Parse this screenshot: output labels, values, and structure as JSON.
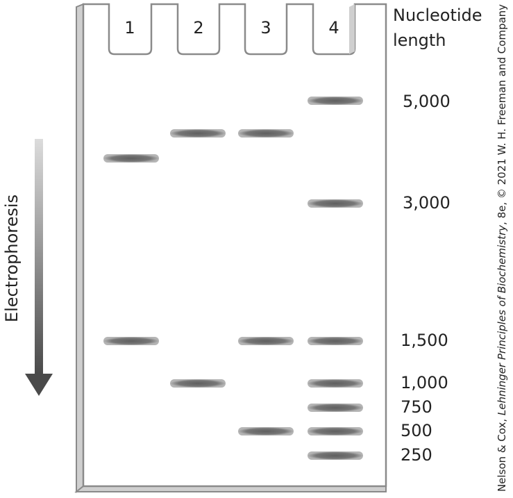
{
  "header": {
    "line1": "Nucleotide",
    "line2": "length"
  },
  "lanes": [
    "1",
    "2",
    "3",
    "4"
  ],
  "electrophoresis_label": "Electrophoresis",
  "ladder_sizes": [
    "5,000",
    "3,000",
    "1,500",
    "1,000",
    "750",
    "500",
    "250"
  ],
  "bands": {
    "lane1": [
      3800,
      1500
    ],
    "lane2": [
      4200,
      1000
    ],
    "lane3": [
      4200,
      1500,
      500
    ],
    "lane4": [
      5000,
      3000,
      1500,
      1000,
      750,
      500,
      250
    ]
  },
  "credit": {
    "part1": "Nelson & Cox, ",
    "part2": "Lehninger Principles of Biochemistry",
    "part3": ", 8e, © 2021 W. H. Freeman and Company"
  },
  "colors": {
    "gel_outline": "#8a8a8a",
    "gel_side": "#cfcfcf",
    "band": "#6f6f6f",
    "arrow_top": "#d9d9d9",
    "arrow_bottom": "#4a4a4a"
  }
}
